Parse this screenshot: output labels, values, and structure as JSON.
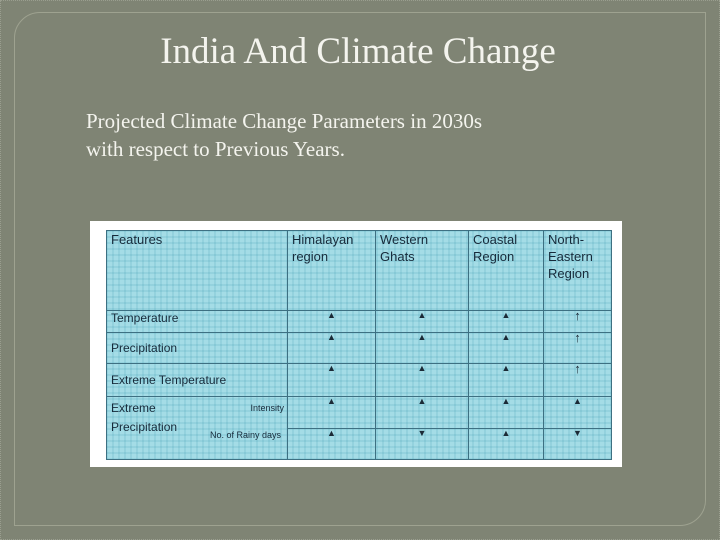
{
  "slide": {
    "title": "India And Climate Change",
    "subtitle_line1": "Projected Climate Change Parameters in 2030s",
    "subtitle_line2": "with respect to Previous Years."
  },
  "table": {
    "headers": {
      "features": "Features",
      "himalayan": "Himalayan region",
      "western": "Western Ghats",
      "coastal": "Coastal Region",
      "northeast": "North-Eastern Region"
    },
    "rows": {
      "temperature": {
        "label": "Temperature",
        "himalayan": "▲",
        "western": "▲",
        "coastal": "▲",
        "northeast": "↑"
      },
      "precipitation": {
        "label": "Precipitation",
        "himalayan": "▲",
        "western": "▲",
        "coastal": "▲",
        "northeast": "↑"
      },
      "extreme_temperature": {
        "label": "Extreme Temperature",
        "himalayan": "▲",
        "western": "▲",
        "coastal": "▲",
        "northeast": "↑"
      },
      "extreme_precipitation": {
        "label_line1": "Extreme",
        "label_line2": "Precipitation",
        "intensity": {
          "label": "Intensity",
          "himalayan": "▲",
          "western": "▲",
          "coastal": "▲",
          "northeast": "▲"
        },
        "rainy_days": {
          "label": "No. of Rainy days",
          "himalayan": "▲",
          "western": "▼",
          "coastal": "▲",
          "northeast": "▼"
        }
      }
    }
  }
}
